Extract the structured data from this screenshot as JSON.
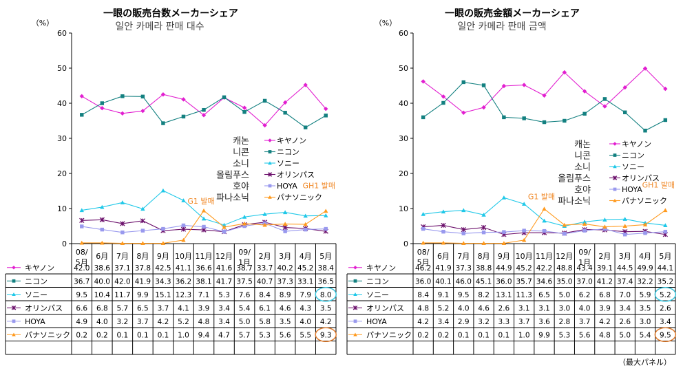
{
  "source_note": "（最大パネル）",
  "series_styles": [
    {
      "color": "#e21fd0",
      "marker": "diamond"
    },
    {
      "color": "#138080",
      "marker": "square"
    },
    {
      "color": "#1fc8e8",
      "marker": "triangle"
    },
    {
      "color": "#6b0f6b",
      "marker": "star"
    },
    {
      "color": "#9999ee",
      "marker": "square"
    },
    {
      "color": "#ff9a1e",
      "marker": "triangle"
    }
  ],
  "chart_data": [
    {
      "type": "line",
      "title": "一眼の販売台数メーカーシェア",
      "subtitle": "일안 카메라 판매 대수",
      "y_unit": "（%）",
      "ylim": [
        0,
        60
      ],
      "yticks": [
        0,
        10,
        20,
        30,
        40,
        50,
        60
      ],
      "categories": [
        "08/\n5月",
        "6月",
        "7月",
        "8月",
        "9月",
        "10月",
        "11月",
        "12月",
        "09/\n1月",
        "2月",
        "3月",
        "4月",
        "5月"
      ],
      "series": [
        {
          "name": "キヤノン",
          "legend_alt": "캐논",
          "values": [
            42.0,
            38.6,
            37.1,
            37.8,
            42.5,
            41.1,
            36.6,
            41.6,
            38.7,
            33.7,
            40.2,
            45.2,
            38.4
          ]
        },
        {
          "name": "ニコン",
          "legend_alt": "니콘",
          "values": [
            36.7,
            40.0,
            42.0,
            41.9,
            34.3,
            36.2,
            38.1,
            41.7,
            37.5,
            40.7,
            37.3,
            33.1,
            36.5
          ]
        },
        {
          "name": "ソニー",
          "legend_alt": "소니",
          "values": [
            9.5,
            10.4,
            11.7,
            9.9,
            15.1,
            12.3,
            7.1,
            5.3,
            7.6,
            8.4,
            8.9,
            7.9,
            8.0
          ]
        },
        {
          "name": "オリンパス",
          "legend_alt": "올림푸스",
          "values": [
            6.6,
            6.8,
            5.7,
            6.5,
            3.7,
            4.1,
            3.9,
            3.4,
            5.4,
            6.1,
            4.6,
            4.3,
            3.5
          ]
        },
        {
          "name": "HOYA",
          "legend_alt": "호야",
          "values": [
            4.9,
            4.0,
            3.2,
            3.7,
            4.2,
            5.2,
            4.8,
            3.4,
            5.0,
            5.8,
            3.5,
            4.0,
            4.2
          ]
        },
        {
          "name": "パナソニック",
          "legend_alt": "파나소닉",
          "values": [
            0.2,
            0.2,
            0.1,
            0.1,
            0.1,
            1.0,
            9.4,
            4.7,
            5.7,
            5.3,
            5.6,
            5.5,
            9.3
          ]
        }
      ],
      "annotations": [
        {
          "text": "G1 발매",
          "category_index": 6,
          "series": "パナソニック"
        },
        {
          "text": "GH1 발매",
          "category_index": 12,
          "series": "パナソニック"
        }
      ],
      "circled": [
        {
          "series": "ソニー",
          "category_index": 12
        },
        {
          "series": "パナソニック",
          "category_index": 12
        }
      ],
      "table_values_text": [
        [
          "42.0",
          "38.6",
          "37.1",
          "37.8",
          "42.5",
          "41.1",
          "36.6",
          "41.6",
          "38.7",
          "33.7",
          "40.2",
          "45.2",
          "38.4"
        ],
        [
          "36.7",
          "40.0",
          "42.0",
          "41.9",
          "34.3",
          "36.2",
          "38.1",
          "41.7",
          "37.5",
          "40.7",
          "37.3",
          "33.1",
          "36.5"
        ],
        [
          "9.5",
          "10.4",
          "11.7",
          "9.9",
          "15.1",
          "12.3",
          "7.1",
          "5.3",
          "7.6",
          "8.4",
          "8.9",
          "7.9",
          "8.0"
        ],
        [
          "6.6",
          "6.8",
          "5.7",
          "6.5",
          "3.7",
          "4.1",
          "3.9",
          "3.4",
          "5.4",
          "6.1",
          "4.6",
          "4.3",
          "3.5"
        ],
        [
          "4.9",
          "4.0",
          "3.2",
          "3.7",
          "4.2",
          "5.2",
          "4.8",
          "3.4",
          "5.0",
          "5.8",
          "3.5",
          "4.0",
          "4.2"
        ],
        [
          "0.2",
          "0.2",
          "0.1",
          "0.1",
          "0.1",
          "1.0",
          "9.4",
          "4.7",
          "5.7",
          "5.3",
          "5.6",
          "5.5",
          "9.3"
        ]
      ]
    },
    {
      "type": "line",
      "title": "一眼の販売金額メーカーシェア",
      "subtitle": "일안 카메라 판매 금액",
      "y_unit": "（%）",
      "ylim": [
        0,
        60
      ],
      "yticks": [
        0,
        10,
        20,
        30,
        40,
        50,
        60
      ],
      "categories": [
        "08/\n5月",
        "6月",
        "7月",
        "8月",
        "9月",
        "10月",
        "11月",
        "12月",
        "09/\n1月",
        "2月",
        "3月",
        "4月",
        "5月"
      ],
      "series": [
        {
          "name": "キヤノン",
          "legend_alt": "캐논",
          "values": [
            46.2,
            41.9,
            37.3,
            38.8,
            44.9,
            45.2,
            42.2,
            48.8,
            43.4,
            39.1,
            44.5,
            49.9,
            44.1
          ]
        },
        {
          "name": "ニコン",
          "legend_alt": "니콘",
          "values": [
            36.0,
            40.1,
            46.0,
            45.1,
            36.0,
            35.7,
            34.6,
            35.0,
            37.0,
            41.2,
            37.4,
            32.2,
            35.2
          ]
        },
        {
          "name": "ソニー",
          "legend_alt": "소니",
          "values": [
            8.4,
            9.1,
            9.5,
            8.2,
            13.1,
            11.3,
            6.5,
            5.0,
            6.2,
            6.8,
            7.0,
            5.9,
            5.2
          ]
        },
        {
          "name": "オリンパス",
          "legend_alt": "올림푸스",
          "values": [
            4.8,
            5.2,
            4.0,
            4.6,
            2.6,
            3.1,
            3.1,
            3.0,
            4.0,
            3.9,
            3.4,
            3.5,
            2.6
          ]
        },
        {
          "name": "HOYA",
          "legend_alt": "호야",
          "values": [
            4.2,
            3.4,
            2.9,
            3.2,
            3.3,
            3.7,
            3.6,
            2.8,
            3.7,
            4.2,
            2.6,
            3.0,
            3.4
          ]
        },
        {
          "name": "パナソニック",
          "legend_alt": "파나소닉",
          "values": [
            0.2,
            0.2,
            0.1,
            0.1,
            0.1,
            1.0,
            9.9,
            5.3,
            5.6,
            4.8,
            5.0,
            5.4,
            9.5
          ]
        }
      ],
      "annotations": [
        {
          "text": "G1 발매",
          "category_index": 6,
          "series": "パナソニック"
        },
        {
          "text": "GH1 발매",
          "category_index": 12,
          "series": "パナソニック"
        }
      ],
      "circled": [
        {
          "series": "ソニー",
          "category_index": 12
        },
        {
          "series": "パナソニック",
          "category_index": 12
        }
      ],
      "table_values_text": [
        [
          "46.2",
          "41.9",
          "37.3",
          "38.8",
          "44.9",
          "45.2",
          "42.2",
          "48.8",
          "43.4",
          "39.1",
          "44.5",
          "49.9",
          "44.1"
        ],
        [
          "36.0",
          "40.1",
          "46.0",
          "45.1",
          "36.0",
          "35.7",
          "34.6",
          "35.0",
          "37.0",
          "41.2",
          "37.4",
          "32.2",
          "35.2"
        ],
        [
          "8.4",
          "9.1",
          "9.5",
          "8.2",
          "13.1",
          "11.3",
          "6.5",
          "5.0",
          "6.2",
          "6.8",
          "7.0",
          "5.9",
          "5.2"
        ],
        [
          "4.8",
          "5.2",
          "4.0",
          "4.6",
          "2.6",
          "3.1",
          "3.1",
          "3.0",
          "4.0",
          "3.9",
          "3.4",
          "3.5",
          "2.6"
        ],
        [
          "4.2",
          "3.4",
          "2.9",
          "3.2",
          "3.3",
          "3.7",
          "3.6",
          "2.8",
          "3.7",
          "4.2",
          "2.6",
          "3.0",
          "3.4"
        ],
        [
          "0.2",
          "0.2",
          "0.1",
          "0.1",
          "0.1",
          "1.0",
          "9.9",
          "5.3",
          "5.6",
          "4.8",
          "5.0",
          "5.4",
          "9.5"
        ]
      ]
    }
  ]
}
